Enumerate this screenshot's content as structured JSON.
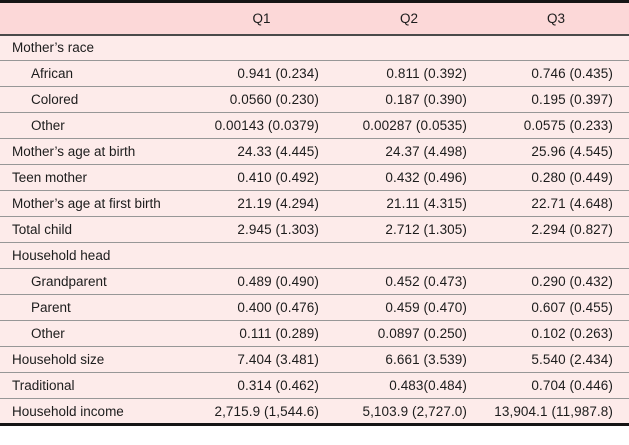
{
  "table": {
    "columns": [
      "",
      "Q1",
      "Q2",
      "Q3"
    ],
    "rows": [
      {
        "label": "Mother’s race",
        "type": "section",
        "values": [
          "",
          "",
          ""
        ]
      },
      {
        "label": "African",
        "type": "indent",
        "values": [
          "0.941 (0.234)",
          "0.811 (0.392)",
          "0.746 (0.435)"
        ]
      },
      {
        "label": "Colored",
        "type": "indent",
        "values": [
          "0.0560 (0.230)",
          "0.187 (0.390)",
          "0.195 (0.397)"
        ]
      },
      {
        "label": "Other",
        "type": "indent",
        "values": [
          "0.00143 (0.0379)",
          "0.00287 (0.0535)",
          "0.0575 (0.233)"
        ]
      },
      {
        "label": "Mother’s age at birth",
        "type": "normal",
        "values": [
          "24.33 (4.445)",
          "24.37 (4.498)",
          "25.96 (4.545)"
        ]
      },
      {
        "label": "Teen mother",
        "type": "normal",
        "values": [
          "0.410 (0.492)",
          "0.432 (0.496)",
          "0.280 (0.449)"
        ]
      },
      {
        "label": "Mother’s age at first birth",
        "type": "normal",
        "values": [
          "21.19 (4.294)",
          "21.11 (4.315)",
          "22.71 (4.648)"
        ]
      },
      {
        "label": "Total child",
        "type": "normal",
        "values": [
          "2.945 (1.303)",
          "2.712 (1.305)",
          "2.294 (0.827)"
        ]
      },
      {
        "label": "Household head",
        "type": "section",
        "values": [
          "",
          "",
          ""
        ]
      },
      {
        "label": "Grandparent",
        "type": "indent",
        "values": [
          "0.489 (0.490)",
          "0.452 (0.473)",
          "0.290 (0.432)"
        ]
      },
      {
        "label": "Parent",
        "type": "indent",
        "values": [
          "0.400 (0.476)",
          "0.459 (0.470)",
          "0.607 (0.455)"
        ]
      },
      {
        "label": "Other",
        "type": "indent",
        "values": [
          "0.111 (0.289)",
          "0.0897 (0.250)",
          "0.102 (0.263)"
        ]
      },
      {
        "label": "Household size",
        "type": "normal",
        "values": [
          "7.404 (3.481)",
          "6.661 (3.539)",
          "5.540 (2.434)"
        ]
      },
      {
        "label": "Traditional",
        "type": "normal",
        "values": [
          "0.314 (0.462)",
          "0.483(0.484)",
          "0.704 (0.446)"
        ]
      },
      {
        "label": "Household income",
        "type": "normal",
        "values": [
          "2,715.9 (1,544.6)",
          "5,103.9 (2,727.0)",
          "13,904.1 (11,987.8)"
        ]
      }
    ]
  },
  "colors": {
    "header_bg": "#fcd8d8",
    "body_bg": "#fdebea",
    "rule_heavy": "#151515",
    "rule_light": "#979797",
    "text": "#1c1c1c"
  }
}
